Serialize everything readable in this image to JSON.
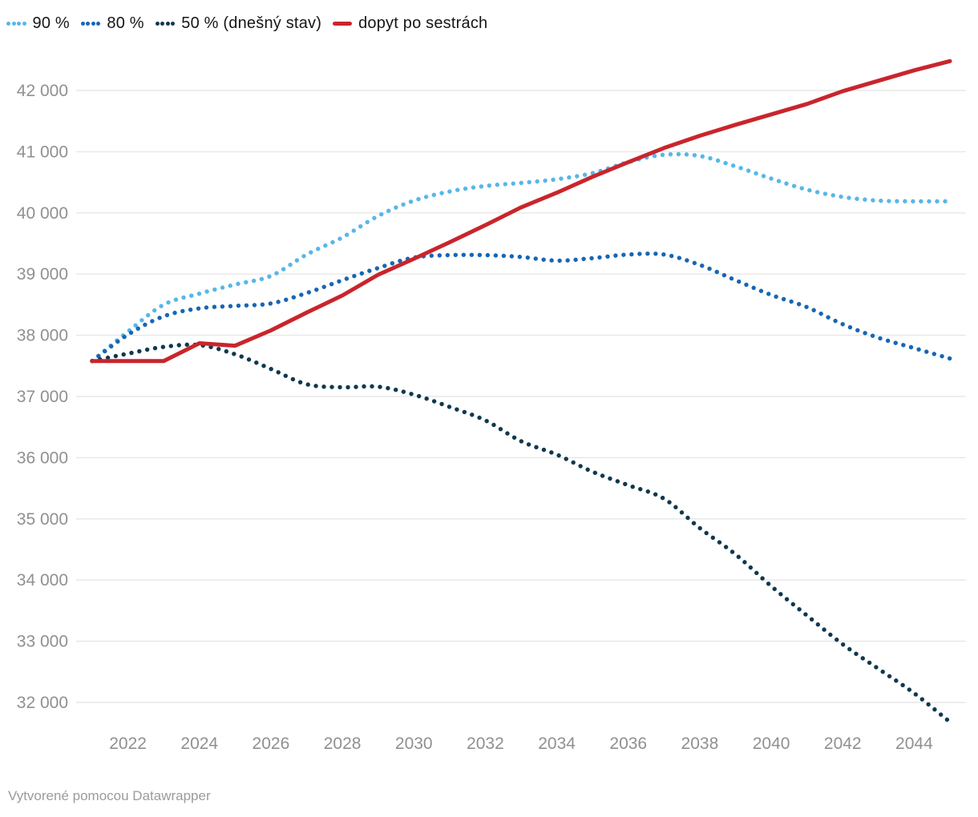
{
  "legend": {
    "items": [
      {
        "label": "90 %",
        "color": "#57b7e8",
        "style": "dotted"
      },
      {
        "label": "80 %",
        "color": "#1766b4",
        "style": "dotted"
      },
      {
        "label": "50 % (dnešný stav)",
        "color": "#0f384f",
        "style": "dotted"
      },
      {
        "label": "dopyt po sestrách",
        "color": "#c9252c",
        "style": "solid"
      }
    ]
  },
  "footer": {
    "credit": "Vytvorené pomocou Datawrapper"
  },
  "colors": {
    "gridline": "#e7e7e7",
    "axis_text": "#909090",
    "legend_text": "#161616",
    "footer_text": "#9b9b9b"
  },
  "chart_data": {
    "type": "line",
    "x": [
      2021,
      2022,
      2023,
      2024,
      2025,
      2026,
      2027,
      2028,
      2029,
      2030,
      2031,
      2032,
      2033,
      2034,
      2035,
      2036,
      2037,
      2038,
      2039,
      2040,
      2041,
      2042,
      2043,
      2044,
      2045
    ],
    "x_tick_labels": [
      "2022",
      "2024",
      "2026",
      "2028",
      "2030",
      "2032",
      "2034",
      "2036",
      "2038",
      "2040",
      "2042",
      "2044"
    ],
    "x_tick_values": [
      2022,
      2024,
      2026,
      2028,
      2030,
      2032,
      2034,
      2036,
      2038,
      2040,
      2042,
      2044
    ],
    "y_ticks": [
      {
        "value": 42000,
        "label": "42 000"
      },
      {
        "value": 41000,
        "label": "41 000"
      },
      {
        "value": 40000,
        "label": "40 000"
      },
      {
        "value": 39000,
        "label": "39 000"
      },
      {
        "value": 38000,
        "label": "38 000"
      },
      {
        "value": 37000,
        "label": "37 000"
      },
      {
        "value": 36000,
        "label": "36 000"
      },
      {
        "value": 35000,
        "label": "35 000"
      },
      {
        "value": 34000,
        "label": "34 000"
      },
      {
        "value": 33000,
        "label": "33 000"
      },
      {
        "value": 32000,
        "label": "32 000"
      }
    ],
    "xlim": [
      2021,
      2045
    ],
    "ylim": [
      32000,
      42000
    ],
    "grid": "horizontal",
    "legend_position": "top-left",
    "title": "",
    "xlabel": "",
    "ylabel": "",
    "series": [
      {
        "name": "90 %",
        "style": "dotted",
        "color": "#57b7e8",
        "values": [
          37580,
          38060,
          38500,
          38680,
          38830,
          38970,
          39320,
          39600,
          39950,
          40200,
          40350,
          40440,
          40490,
          40550,
          40650,
          40830,
          40950,
          40930,
          40760,
          40560,
          40380,
          40260,
          40200,
          40190,
          40190
        ]
      },
      {
        "name": "80 %",
        "style": "dotted",
        "color": "#1766b4",
        "values": [
          37580,
          38010,
          38310,
          38440,
          38480,
          38520,
          38690,
          38900,
          39100,
          39270,
          39310,
          39310,
          39280,
          39220,
          39260,
          39320,
          39320,
          39150,
          38900,
          38660,
          38460,
          38180,
          37960,
          37790,
          37620
        ]
      },
      {
        "name": "50 % (dnešný stav)",
        "style": "dotted",
        "color": "#0f384f",
        "values": [
          37580,
          37700,
          37810,
          37840,
          37690,
          37450,
          37200,
          37150,
          37160,
          37030,
          36830,
          36610,
          36270,
          36050,
          35770,
          35550,
          35330,
          34850,
          34420,
          33900,
          33420,
          32950,
          32550,
          32150,
          31680
        ]
      },
      {
        "name": "dopyt po sestrách",
        "style": "solid",
        "color": "#c9252c",
        "values": [
          37580,
          37580,
          37580,
          37870,
          37830,
          38080,
          38370,
          38650,
          38990,
          39250,
          39520,
          39800,
          40090,
          40330,
          40590,
          40830,
          41060,
          41260,
          41440,
          41610,
          41780,
          41990,
          42160,
          42330,
          42480
        ]
      }
    ]
  }
}
